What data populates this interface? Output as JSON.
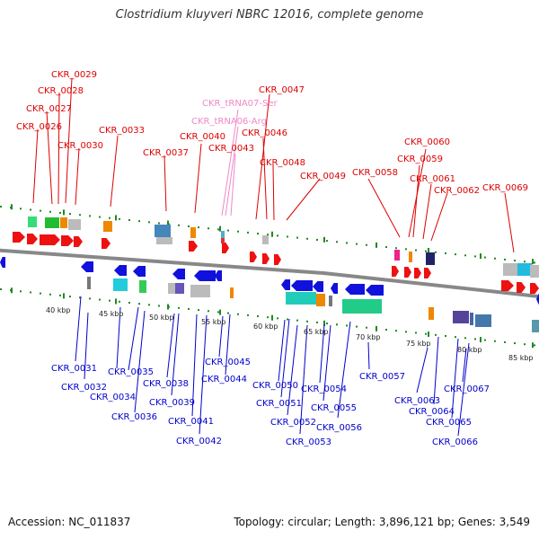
{
  "header": {
    "title": "Clostridium kluyveri NBRC 12016, complete genome"
  },
  "footer": {
    "accession": "Accession: NC_011837",
    "stats": "Topology: circular; Length: 3,896,121 bp; Genes: 3,549"
  },
  "colors": {
    "upper_label": "#dd0000",
    "trna_label": "#ee88c8",
    "lower_label": "#0000cc",
    "backbone": "#888888",
    "tick": "#228822"
  },
  "scale_ticks": [
    "40 kbp",
    "45 kbp",
    "50 kbp",
    "55 kbp",
    "60 kbp",
    "65 kbp",
    "70 kbp",
    "75 kbp",
    "80 kbp",
    "85 kbp"
  ],
  "upper_genes": [
    "CKR_0029",
    "CKR_0028",
    "CKR_0027",
    "CKR_0026",
    "CKR_0030",
    "CKR_0033",
    "CKR_0037",
    "CKR_0040",
    "CKR_tRNA07-Ser",
    "CKR_tRNA06-Arg",
    "CKR_0043",
    "CKR_0047",
    "CKR_0046",
    "CKR_0048",
    "CKR_0049",
    "CKR_0058",
    "CKR_0060",
    "CKR_0059",
    "CKR_0061",
    "CKR_0062",
    "CKR_0069"
  ],
  "lower_genes": [
    "CKR_0031",
    "CKR_0032",
    "CKR_0035",
    "CKR_0034",
    "CKR_0036",
    "CKR_0038",
    "CKR_0039",
    "CKR_0041",
    "CKR_0042",
    "CKR_0045",
    "CKR_0044",
    "CKR_0050",
    "CKR_0051",
    "CKR_0052",
    "CKR_0053",
    "CKR_0054",
    "CKR_0055",
    "CKR_0056",
    "CKR_0057",
    "CKR_0063",
    "CKR_0064",
    "CKR_0065",
    "CKR_0066",
    "CKR_0067"
  ]
}
